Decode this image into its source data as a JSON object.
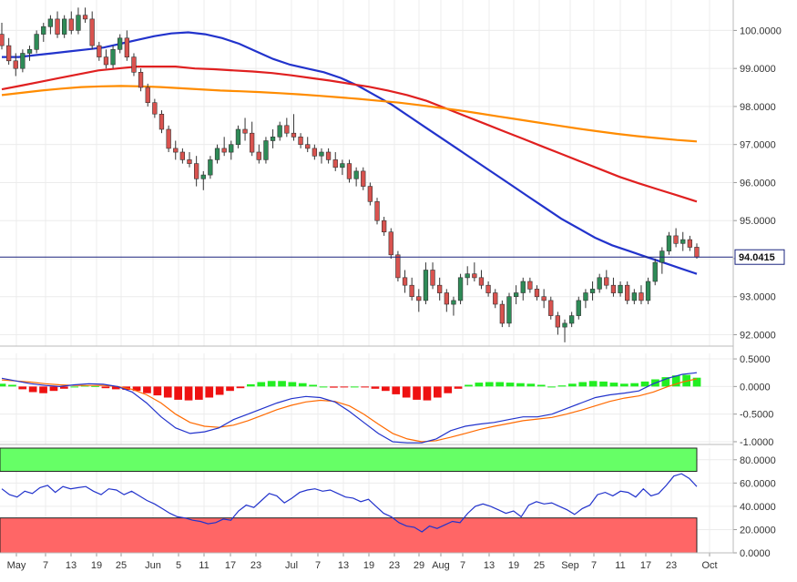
{
  "chart_data": [
    {
      "type": "candlestick",
      "panel": "price",
      "ylim": [
        91.7,
        100.8
      ],
      "y_ticks": [
        "92.0000",
        "93.0000",
        "94.0000",
        "95.0000",
        "96.0000",
        "97.0000",
        "98.0000",
        "99.0000",
        "100.0000"
      ],
      "y_tick_values": [
        92,
        93,
        94,
        95,
        96,
        97,
        98,
        99,
        100
      ],
      "x_tick_labels": [
        "May",
        "7",
        "13",
        "19",
        "25",
        "Jun",
        "5",
        "11",
        "17",
        "23",
        "Jul",
        "7",
        "13",
        "19",
        "23",
        "29",
        "Aug",
        "7",
        "13",
        "19",
        "25",
        "Sep",
        "7",
        "11",
        "17",
        "23",
        "Oct"
      ],
      "last_price_label": "94.0415",
      "last_price": 94.0415,
      "up_color": "#2e8b57",
      "down_color": "#d9534f",
      "ohlc": [
        [
          99.9,
          100.2,
          99.5,
          99.6
        ],
        [
          99.6,
          99.8,
          99.1,
          99.2
        ],
        [
          99.2,
          99.4,
          98.8,
          99.0
        ],
        [
          99.0,
          99.5,
          98.9,
          99.4
        ],
        [
          99.4,
          99.6,
          99.2,
          99.5
        ],
        [
          99.5,
          100.0,
          99.4,
          99.9
        ],
        [
          99.9,
          100.2,
          99.7,
          100.1
        ],
        [
          100.1,
          100.4,
          99.9,
          100.3
        ],
        [
          100.3,
          100.5,
          99.8,
          99.9
        ],
        [
          99.9,
          100.4,
          99.8,
          100.3
        ],
        [
          100.3,
          100.5,
          99.9,
          100.0
        ],
        [
          100.0,
          100.6,
          99.9,
          100.4
        ],
        [
          100.4,
          100.6,
          100.2,
          100.3
        ],
        [
          100.3,
          100.5,
          99.5,
          99.6
        ],
        [
          99.6,
          99.7,
          99.2,
          99.3
        ],
        [
          99.3,
          99.5,
          99.0,
          99.1
        ],
        [
          99.1,
          99.6,
          99.0,
          99.5
        ],
        [
          99.5,
          99.9,
          99.4,
          99.8
        ],
        [
          99.8,
          100.0,
          99.2,
          99.3
        ],
        [
          99.3,
          99.4,
          98.8,
          98.9
        ],
        [
          98.9,
          99.0,
          98.4,
          98.5
        ],
        [
          98.5,
          98.6,
          98.0,
          98.1
        ],
        [
          98.1,
          98.2,
          97.7,
          97.8
        ],
        [
          97.8,
          97.9,
          97.3,
          97.4
        ],
        [
          97.4,
          97.5,
          96.8,
          96.9
        ],
        [
          96.9,
          97.1,
          96.6,
          96.8
        ],
        [
          96.8,
          96.9,
          96.5,
          96.6
        ],
        [
          96.6,
          96.8,
          96.4,
          96.5
        ],
        [
          96.5,
          96.7,
          95.9,
          96.1
        ],
        [
          96.1,
          96.3,
          95.8,
          96.2
        ],
        [
          96.2,
          96.7,
          96.1,
          96.6
        ],
        [
          96.6,
          97.0,
          96.5,
          96.9
        ],
        [
          96.9,
          97.2,
          96.7,
          96.8
        ],
        [
          96.8,
          97.1,
          96.6,
          97.0
        ],
        [
          97.0,
          97.5,
          96.9,
          97.4
        ],
        [
          97.4,
          97.7,
          97.1,
          97.3
        ],
        [
          97.3,
          97.6,
          96.7,
          96.8
        ],
        [
          96.8,
          97.0,
          96.5,
          96.6
        ],
        [
          96.6,
          97.2,
          96.5,
          97.1
        ],
        [
          97.1,
          97.4,
          96.9,
          97.2
        ],
        [
          97.2,
          97.6,
          97.1,
          97.5
        ],
        [
          97.5,
          97.7,
          97.2,
          97.3
        ],
        [
          97.3,
          97.8,
          97.1,
          97.2
        ],
        [
          97.2,
          97.3,
          96.9,
          97.0
        ],
        [
          97.0,
          97.2,
          96.8,
          96.9
        ],
        [
          96.9,
          97.0,
          96.6,
          96.7
        ],
        [
          96.7,
          96.9,
          96.5,
          96.8
        ],
        [
          96.8,
          96.9,
          96.5,
          96.6
        ],
        [
          96.6,
          96.8,
          96.3,
          96.4
        ],
        [
          96.4,
          96.6,
          96.2,
          96.5
        ],
        [
          96.5,
          96.6,
          96.0,
          96.1
        ],
        [
          96.1,
          96.4,
          95.9,
          96.3
        ],
        [
          96.3,
          96.4,
          95.8,
          95.9
        ],
        [
          95.9,
          96.0,
          95.4,
          95.5
        ],
        [
          95.5,
          95.6,
          94.9,
          95.0
        ],
        [
          95.0,
          95.1,
          94.6,
          94.7
        ],
        [
          94.7,
          94.8,
          94.0,
          94.1
        ],
        [
          94.1,
          94.2,
          93.4,
          93.5
        ],
        [
          93.5,
          93.7,
          93.1,
          93.3
        ],
        [
          93.3,
          93.5,
          92.9,
          93.0
        ],
        [
          93.0,
          93.2,
          92.6,
          92.9
        ],
        [
          92.9,
          93.9,
          92.8,
          93.7
        ],
        [
          93.7,
          93.9,
          93.2,
          93.3
        ],
        [
          93.3,
          93.5,
          92.9,
          93.1
        ],
        [
          93.1,
          93.2,
          92.6,
          92.8
        ],
        [
          92.8,
          93.0,
          92.5,
          92.9
        ],
        [
          92.9,
          93.6,
          92.8,
          93.5
        ],
        [
          93.5,
          93.8,
          93.3,
          93.6
        ],
        [
          93.6,
          93.9,
          93.4,
          93.5
        ],
        [
          93.5,
          93.7,
          93.2,
          93.3
        ],
        [
          93.3,
          93.4,
          93.0,
          93.1
        ],
        [
          93.1,
          93.2,
          92.7,
          92.8
        ],
        [
          92.8,
          92.9,
          92.2,
          92.3
        ],
        [
          92.3,
          93.1,
          92.2,
          93.0
        ],
        [
          93.0,
          93.3,
          92.8,
          93.1
        ],
        [
          93.1,
          93.5,
          92.9,
          93.4
        ],
        [
          93.4,
          93.5,
          93.1,
          93.2
        ],
        [
          93.2,
          93.3,
          92.9,
          93.0
        ],
        [
          93.0,
          93.2,
          92.7,
          92.9
        ],
        [
          92.9,
          93.0,
          92.4,
          92.5
        ],
        [
          92.5,
          92.6,
          92.0,
          92.2
        ],
        [
          92.2,
          92.4,
          91.8,
          92.3
        ],
        [
          92.3,
          92.6,
          92.2,
          92.5
        ],
        [
          92.5,
          93.0,
          92.4,
          92.9
        ],
        [
          92.9,
          93.2,
          92.7,
          93.1
        ],
        [
          93.1,
          93.4,
          92.9,
          93.2
        ],
        [
          93.2,
          93.6,
          93.1,
          93.5
        ],
        [
          93.5,
          93.7,
          93.2,
          93.3
        ],
        [
          93.3,
          93.5,
          93.0,
          93.1
        ],
        [
          93.1,
          93.4,
          93.0,
          93.3
        ],
        [
          93.3,
          93.4,
          92.8,
          92.9
        ],
        [
          92.9,
          93.2,
          92.8,
          93.1
        ],
        [
          93.1,
          93.3,
          92.8,
          92.9
        ],
        [
          92.9,
          93.5,
          92.8,
          93.4
        ],
        [
          93.4,
          94.0,
          93.3,
          93.9
        ],
        [
          93.9,
          94.3,
          93.6,
          94.2
        ],
        [
          94.2,
          94.7,
          94.1,
          94.6
        ],
        [
          94.6,
          94.8,
          94.3,
          94.4
        ],
        [
          94.4,
          94.7,
          94.2,
          94.5
        ],
        [
          94.5,
          94.6,
          94.2,
          94.3
        ],
        [
          94.3,
          94.4,
          94.0,
          94.04
        ]
      ],
      "moving_averages": [
        {
          "color": "#2233cc",
          "values": [
            99.3,
            99.3,
            99.35,
            99.4,
            99.45,
            99.5,
            99.55,
            99.65,
            99.75,
            99.85,
            99.92,
            99.95,
            99.9,
            99.8,
            99.65,
            99.45,
            99.25,
            99.1,
            99.0,
            98.9,
            98.75,
            98.55,
            98.3,
            98.05,
            97.75,
            97.45,
            97.15,
            96.85,
            96.55,
            96.25,
            95.95,
            95.65,
            95.35,
            95.05,
            94.8,
            94.55,
            94.35,
            94.2,
            94.05,
            93.9,
            93.75,
            93.6
          ]
        },
        {
          "color": "#e02020",
          "values": [
            98.45,
            98.55,
            98.65,
            98.75,
            98.85,
            98.95,
            99.0,
            99.05,
            99.05,
            99.05,
            99.0,
            98.98,
            98.95,
            98.92,
            98.88,
            98.82,
            98.75,
            98.68,
            98.6,
            98.52,
            98.42,
            98.3,
            98.15,
            97.95,
            97.75,
            97.55,
            97.35,
            97.15,
            96.95,
            96.75,
            96.55,
            96.35,
            96.15,
            95.98,
            95.82,
            95.66,
            95.5
          ]
        },
        {
          "color": "#ff8c00",
          "values": [
            98.3,
            98.36,
            98.42,
            98.47,
            98.51,
            98.53,
            98.54,
            98.53,
            98.51,
            98.48,
            98.45,
            98.42,
            98.4,
            98.38,
            98.35,
            98.32,
            98.28,
            98.24,
            98.2,
            98.15,
            98.1,
            98.04,
            97.97,
            97.9,
            97.82,
            97.74,
            97.66,
            97.58,
            97.5,
            97.42,
            97.35,
            97.28,
            97.22,
            97.17,
            97.12,
            97.08
          ]
        }
      ]
    },
    {
      "type": "macd",
      "panel": "macd",
      "ylim": [
        -1.05,
        0.6
      ],
      "y_ticks": [
        "0.5000",
        "0.0000",
        "-0.5000",
        "-1.0000"
      ],
      "y_tick_values": [
        0.5,
        0.0,
        -0.5,
        -1.0
      ],
      "histogram_positive_color": "#22ee22",
      "histogram_negative_color": "#ee1111",
      "macd_line_color": "#2233cc",
      "signal_line_color": "#ff6a00",
      "histogram": [
        0.05,
        0.03,
        -0.05,
        -0.1,
        -0.12,
        -0.08,
        -0.04,
        0.0,
        0.02,
        0.01,
        -0.03,
        -0.05,
        -0.06,
        -0.08,
        -0.12,
        -0.16,
        -0.2,
        -0.24,
        -0.25,
        -0.24,
        -0.2,
        -0.15,
        -0.08,
        -0.03,
        0.04,
        0.08,
        0.1,
        0.1,
        0.08,
        0.06,
        0.03,
        0.0,
        -0.02,
        -0.01,
        0.0,
        -0.01,
        -0.04,
        -0.08,
        -0.14,
        -0.2,
        -0.24,
        -0.25,
        -0.2,
        -0.12,
        -0.04,
        0.03,
        0.07,
        0.08,
        0.08,
        0.07,
        0.06,
        0.05,
        0.03,
        0.0,
        0.02,
        0.05,
        0.08,
        0.1,
        0.09,
        0.07,
        0.05,
        0.06,
        0.09,
        0.13,
        0.17,
        0.2,
        0.21,
        0.16
      ],
      "macd": [
        0.15,
        0.1,
        0.05,
        0.02,
        0.0,
        0.03,
        0.05,
        0.04,
        0.0,
        -0.1,
        -0.3,
        -0.55,
        -0.75,
        -0.85,
        -0.82,
        -0.75,
        -0.6,
        -0.5,
        -0.4,
        -0.3,
        -0.22,
        -0.18,
        -0.2,
        -0.28,
        -0.45,
        -0.65,
        -0.85,
        -1.0,
        -1.02,
        -1.02,
        -0.95,
        -0.8,
        -0.72,
        -0.68,
        -0.65,
        -0.6,
        -0.55,
        -0.55,
        -0.5,
        -0.4,
        -0.3,
        -0.2,
        -0.15,
        -0.12,
        -0.08,
        0.05,
        0.15,
        0.22,
        0.25
      ],
      "signal": [
        0.12,
        0.1,
        0.08,
        0.05,
        0.03,
        0.02,
        0.02,
        0.02,
        0.0,
        -0.05,
        -0.15,
        -0.3,
        -0.5,
        -0.65,
        -0.72,
        -0.74,
        -0.7,
        -0.62,
        -0.52,
        -0.42,
        -0.34,
        -0.28,
        -0.25,
        -0.27,
        -0.35,
        -0.5,
        -0.68,
        -0.85,
        -0.95,
        -1.0,
        -0.98,
        -0.92,
        -0.85,
        -0.78,
        -0.72,
        -0.67,
        -0.62,
        -0.59,
        -0.56,
        -0.5,
        -0.43,
        -0.35,
        -0.27,
        -0.21,
        -0.17,
        -0.1,
        0.0,
        0.08,
        0.14
      ]
    },
    {
      "type": "rsi",
      "panel": "rsi",
      "ylim": [
        0,
        90
      ],
      "y_ticks": [
        "80.0000",
        "60.0000",
        "40.0000",
        "20.0000",
        "0.0000"
      ],
      "y_tick_values": [
        80,
        60,
        40,
        20,
        0
      ],
      "overbought_zone_color": "#66ff66",
      "oversold_zone_color": "#ff6666",
      "line_color": "#2233cc",
      "overbought": 70,
      "oversold": 30,
      "values": [
        55,
        50,
        48,
        53,
        51,
        56,
        58,
        52,
        57,
        55,
        56,
        57,
        53,
        50,
        55,
        54,
        50,
        53,
        49,
        45,
        42,
        38,
        34,
        31,
        30,
        28,
        27,
        25,
        26,
        29,
        28,
        36,
        41,
        39,
        45,
        51,
        49,
        43,
        47,
        52,
        54,
        55,
        53,
        54,
        51,
        48,
        47,
        44,
        46,
        40,
        34,
        31,
        26,
        23,
        22,
        18,
        23,
        21,
        24,
        27,
        26,
        34,
        40,
        42,
        40,
        37,
        34,
        36,
        31,
        41,
        44,
        42,
        43,
        40,
        37,
        33,
        38,
        41,
        50,
        52,
        49,
        53,
        52,
        48,
        55,
        49,
        51,
        58,
        66,
        68,
        64,
        57
      ]
    }
  ]
}
